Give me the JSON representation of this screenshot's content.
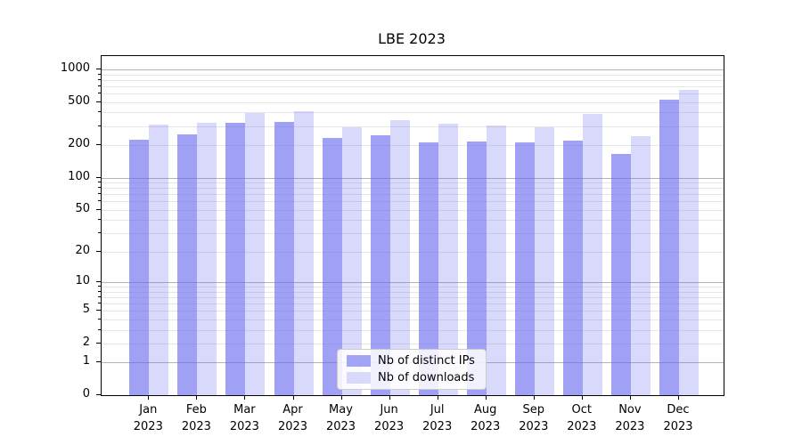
{
  "chart_data": {
    "type": "bar",
    "title": "LBE 2023",
    "categories": [
      "Jan",
      "Feb",
      "Mar",
      "Apr",
      "May",
      "Jun",
      "Jul",
      "Aug",
      "Sep",
      "Oct",
      "Nov",
      "Dec"
    ],
    "category_year": "2023",
    "series": [
      {
        "name": "Nb of distinct IPs",
        "color": "rgba(102,102,238,0.62)",
        "legend_color": "#a4a4f4",
        "values": [
          225,
          250,
          320,
          330,
          232,
          246,
          211,
          214,
          211,
          220,
          167,
          530
        ]
      },
      {
        "name": "Nb of downloads",
        "color": "rgba(102,102,238,0.25)",
        "legend_color": "#d9d9fb",
        "values": [
          310,
          320,
          395,
          410,
          293,
          341,
          316,
          306,
          295,
          387,
          242,
          645
        ]
      }
    ],
    "y_axis": {
      "scale": "log10(1+v)",
      "tick_values": [
        0,
        1,
        2,
        5,
        10,
        20,
        50,
        100,
        200,
        500,
        1000
      ],
      "major_grid_values": [
        1,
        10,
        100,
        1000
      ],
      "ylim": [
        0,
        1300
      ]
    },
    "x_axis": {
      "label_format": "Mon 2023"
    },
    "legend": {
      "position": "bottom-center"
    },
    "grid": true,
    "colors": {
      "background": "#ffffff",
      "major_grid": "#b4b4b4",
      "minor_grid": "#e6e6e6",
      "axis": "#000000"
    }
  }
}
